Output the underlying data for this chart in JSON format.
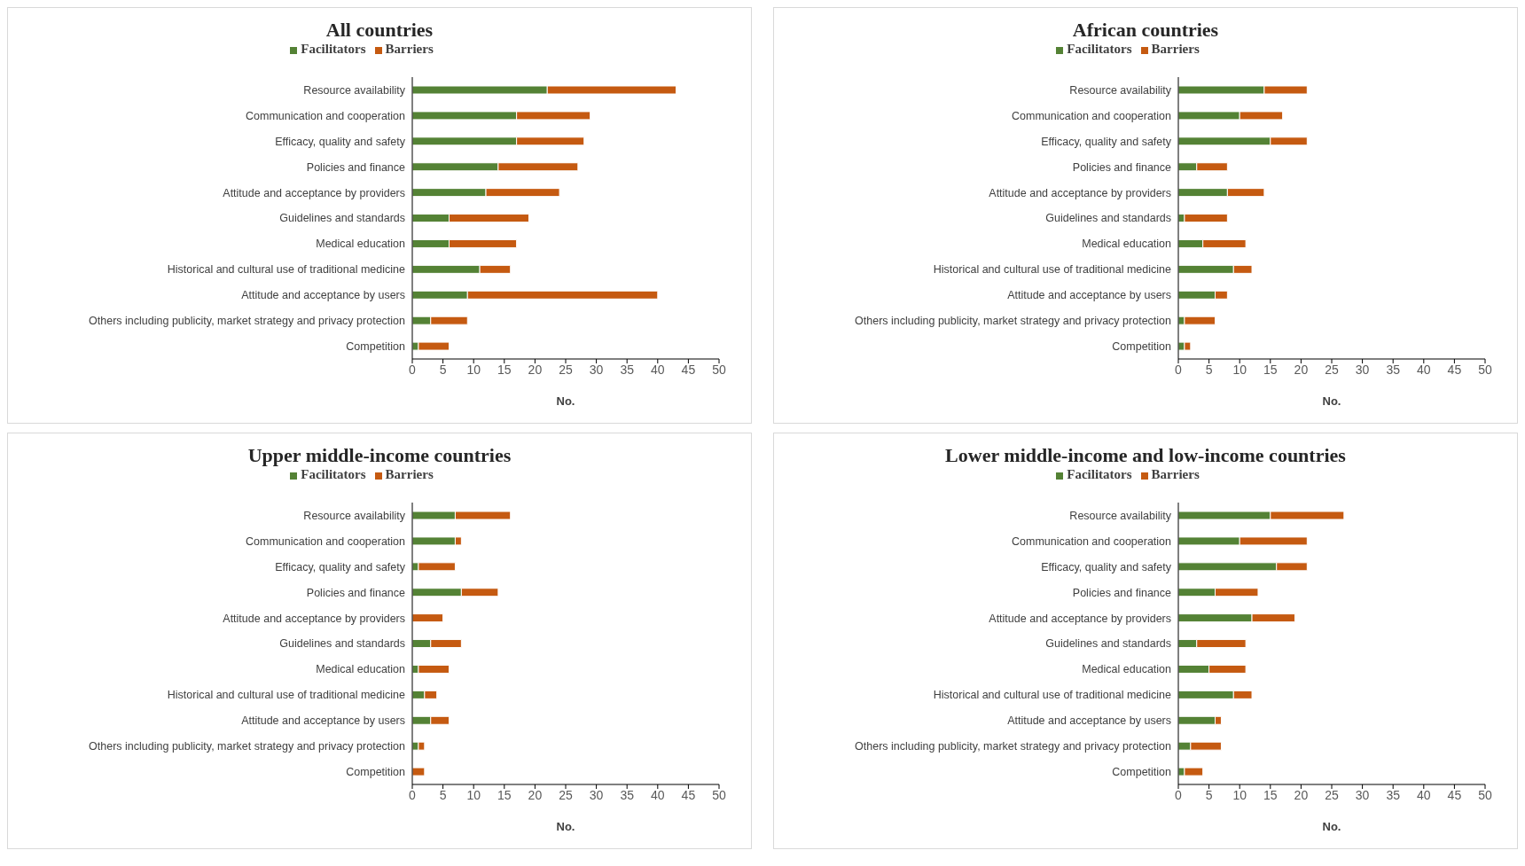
{
  "chart_data": [
    {
      "type": "bar",
      "orientation": "horizontal",
      "stacked": true,
      "title": "All countries",
      "xlabel": "No.",
      "legend": "top",
      "xlim": [
        0,
        50
      ],
      "xticks": [
        0,
        5,
        10,
        15,
        20,
        25,
        30,
        35,
        40,
        45,
        50
      ],
      "categories": [
        "Resource availability",
        "Communication and cooperation",
        "Efficacy, quality and safety",
        "Policies and finance",
        "Attitude and acceptance by providers",
        "Guidelines and standards",
        "Medical education",
        "Historical and cultural use of traditional medicine",
        "Attitude and acceptance by users",
        "Others including publicity, market strategy and privacy protection",
        "Competition"
      ],
      "series": [
        {
          "name": "Facilitators",
          "color": "#548235",
          "values": [
            22,
            17,
            17,
            14,
            12,
            6,
            6,
            11,
            9,
            3,
            1
          ]
        },
        {
          "name": "Barriers",
          "color": "#c55a11",
          "values": [
            21,
            12,
            11,
            13,
            12,
            13,
            11,
            5,
            31,
            6,
            5
          ]
        }
      ]
    },
    {
      "type": "bar",
      "orientation": "horizontal",
      "stacked": true,
      "title": "African countries",
      "xlabel": "No.",
      "legend": "top",
      "xlim": [
        0,
        50
      ],
      "xticks": [
        0,
        5,
        10,
        15,
        20,
        25,
        30,
        35,
        40,
        45,
        50
      ],
      "categories": [
        "Resource availability",
        "Communication and cooperation",
        "Efficacy, quality and safety",
        "Policies and finance",
        "Attitude and acceptance by providers",
        "Guidelines and standards",
        "Medical education",
        "Historical and cultural use of traditional medicine",
        "Attitude and acceptance by users",
        "Others including publicity, market strategy and privacy protection",
        "Competition"
      ],
      "series": [
        {
          "name": "Facilitators",
          "color": "#548235",
          "values": [
            14,
            10,
            15,
            3,
            8,
            1,
            4,
            9,
            6,
            1,
            1
          ]
        },
        {
          "name": "Barriers",
          "color": "#c55a11",
          "values": [
            7,
            7,
            6,
            5,
            6,
            7,
            7,
            3,
            2,
            5,
            1
          ]
        }
      ]
    },
    {
      "type": "bar",
      "orientation": "horizontal",
      "stacked": true,
      "title": "Upper middle-income countries",
      "xlabel": "No.",
      "legend": "top",
      "xlim": [
        0,
        50
      ],
      "xticks": [
        0,
        5,
        10,
        15,
        20,
        25,
        30,
        35,
        40,
        45,
        50
      ],
      "categories": [
        "Resource availability",
        "Communication and cooperation",
        "Efficacy, quality and safety",
        "Policies and finance",
        "Attitude and acceptance by providers",
        "Guidelines and standards",
        "Medical education",
        "Historical and cultural use of traditional medicine",
        "Attitude and acceptance by users",
        "Others including publicity, market strategy and privacy protection",
        "Competition"
      ],
      "series": [
        {
          "name": "Facilitators",
          "color": "#548235",
          "values": [
            7,
            7,
            1,
            8,
            0,
            3,
            1,
            2,
            3,
            1,
            0
          ]
        },
        {
          "name": "Barriers",
          "color": "#c55a11",
          "values": [
            9,
            1,
            6,
            6,
            5,
            5,
            5,
            2,
            3,
            1,
            2
          ]
        }
      ]
    },
    {
      "type": "bar",
      "orientation": "horizontal",
      "stacked": true,
      "title": "Lower middle-income and low-income countries",
      "xlabel": "No.",
      "legend": "top",
      "xlim": [
        0,
        50
      ],
      "xticks": [
        0,
        5,
        10,
        15,
        20,
        25,
        30,
        35,
        40,
        45,
        50
      ],
      "categories": [
        "Resource availability",
        "Communication and cooperation",
        "Efficacy, quality and safety",
        "Policies and finance",
        "Attitude and acceptance by providers",
        "Guidelines and standards",
        "Medical education",
        "Historical and cultural use of traditional medicine",
        "Attitude and acceptance by users",
        "Others including publicity, market strategy and privacy protection",
        "Competition"
      ],
      "series": [
        {
          "name": "Facilitators",
          "color": "#548235",
          "values": [
            15,
            10,
            16,
            6,
            12,
            3,
            5,
            9,
            6,
            2,
            1
          ]
        },
        {
          "name": "Barriers",
          "color": "#c55a11",
          "values": [
            12,
            11,
            5,
            7,
            7,
            8,
            6,
            3,
            1,
            5,
            3
          ]
        }
      ]
    }
  ]
}
